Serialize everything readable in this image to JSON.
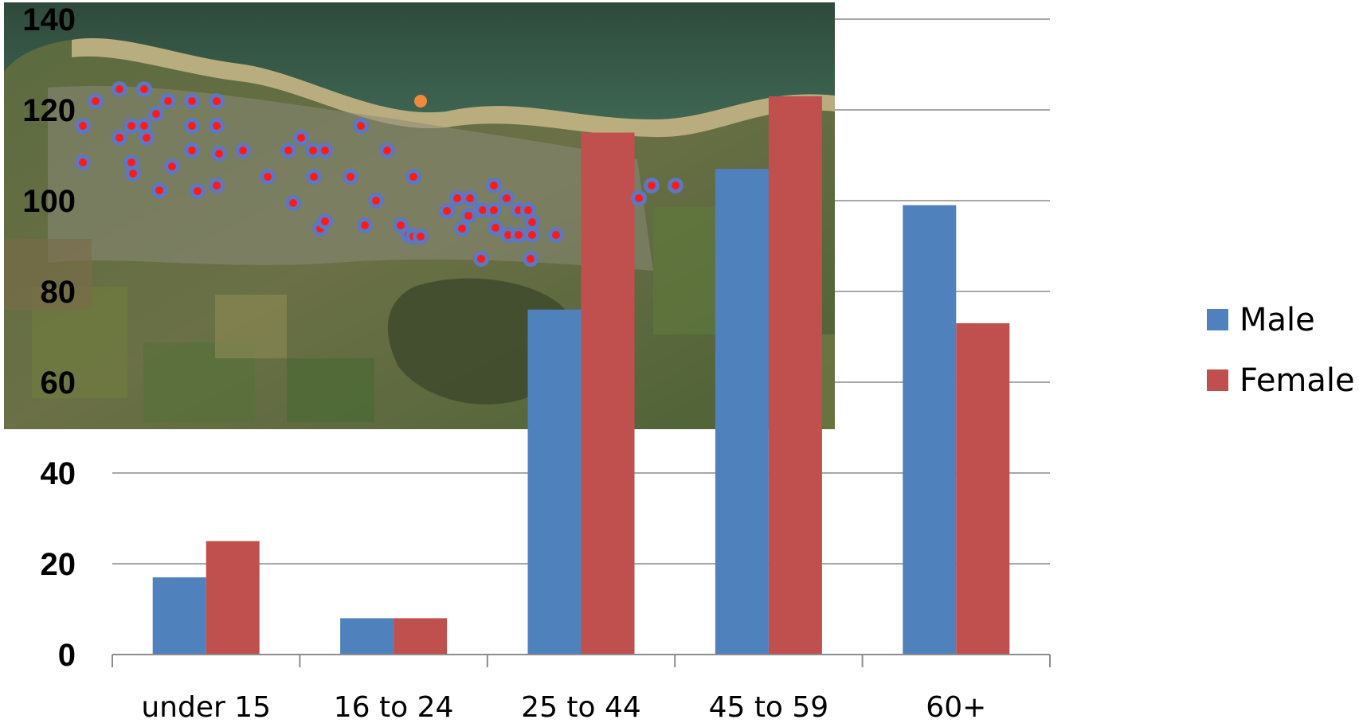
{
  "chart_data": {
    "type": "bar",
    "categories": [
      "under 15",
      "16 to 24",
      "25 to 44",
      "45 to 59",
      "60+"
    ],
    "series": [
      {
        "name": "Male",
        "color": "#4F81BD",
        "values": [
          17,
          8,
          76,
          107,
          99
        ]
      },
      {
        "name": "Female",
        "color": "#C0504D",
        "values": [
          25,
          8,
          115,
          123,
          73
        ]
      }
    ],
    "ylim": [
      0,
      140
    ],
    "yticks": [
      0,
      20,
      40,
      60,
      80,
      100,
      120,
      140
    ],
    "grid": true,
    "legend_position": "right",
    "inset_image": "satellite-map",
    "map_marker_color": "#FF1A1A"
  }
}
